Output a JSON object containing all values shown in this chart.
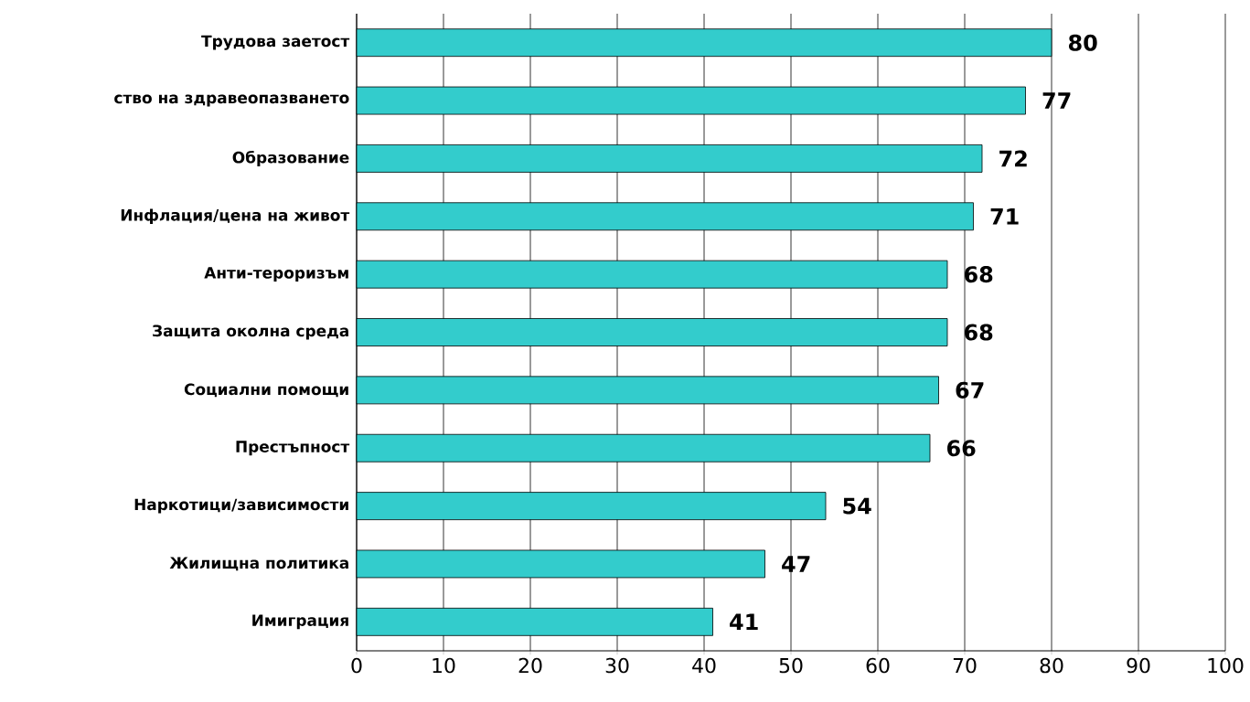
{
  "chart_data": {
    "type": "bar",
    "orientation": "horizontal",
    "categories": [
      "Трудова заетост",
      "ство на здравеопазването",
      "Образование",
      "Инфлация/цена на живот",
      "Анти-тероризъм",
      "Защита околна среда",
      "Социални помощи",
      "Престъпност",
      "Наркотици/зависимости",
      "Жилищна политика",
      "Имиграция"
    ],
    "values": [
      80,
      77,
      72,
      71,
      68,
      68,
      67,
      66,
      54,
      47,
      41
    ],
    "color": "#33cccc",
    "xlim": [
      0,
      100
    ],
    "xticks": [
      0,
      10,
      20,
      30,
      40,
      50,
      60,
      70,
      80,
      90,
      100
    ],
    "grid": "x",
    "data_labels": true
  }
}
